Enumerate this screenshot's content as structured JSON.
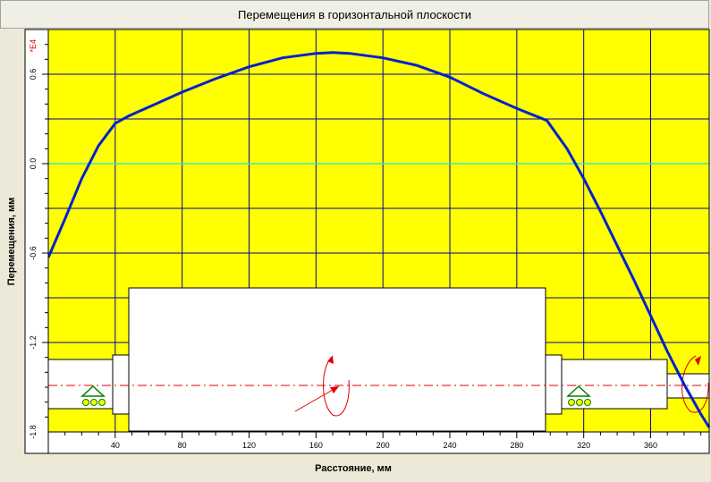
{
  "window": {
    "title": "Перемещения в горизонтальной плоскости"
  },
  "colors": {
    "plot_background": "#ffff00",
    "grid": "#0000a0",
    "zero_line": "#40e0d0",
    "curve": "#0020d0",
    "shaft_fill": "#ffffff",
    "axis_line": "#e00000",
    "moment_marker": "#e00000",
    "support": "#008000"
  },
  "chart_data": {
    "type": "line",
    "title": "Перемещения в горизонтальной плоскости",
    "xlabel": "Расстояние, мм",
    "ylabel": "Перемещения, мм",
    "y_multiplier_label": "*E4",
    "xlim": [
      0,
      395
    ],
    "ylim": [
      -1.8,
      0.9
    ],
    "x_ticks": [
      40,
      80,
      120,
      160,
      200,
      240,
      280,
      320,
      360
    ],
    "x_tick_labels": [
      "40",
      "80",
      "120",
      "160",
      "200",
      "240",
      "280",
      "320",
      "360"
    ],
    "y_ticks": [
      0.6,
      0.0,
      -0.6,
      -1.2,
      -1.8
    ],
    "y_tick_labels": [
      "0.6",
      "0.0",
      "-0.6",
      "-1.2",
      "-1.8"
    ],
    "grid": true,
    "series": [
      {
        "x": [
          0,
          10,
          20,
          30,
          40,
          48,
          60,
          80,
          100,
          120,
          140,
          160,
          170,
          180,
          200,
          220,
          240,
          260,
          280,
          298,
          310,
          320,
          330,
          340,
          350,
          360,
          370,
          380,
          390,
          395
        ],
        "y": [
          -0.63,
          -0.37,
          -0.1,
          0.12,
          0.27,
          0.32,
          0.38,
          0.48,
          0.57,
          0.65,
          0.71,
          0.74,
          0.745,
          0.74,
          0.71,
          0.66,
          0.58,
          0.47,
          0.37,
          0.29,
          0.1,
          -0.1,
          -0.32,
          -0.55,
          -0.78,
          -1.02,
          -1.26,
          -1.48,
          -1.68,
          -1.77
        ]
      }
    ]
  }
}
